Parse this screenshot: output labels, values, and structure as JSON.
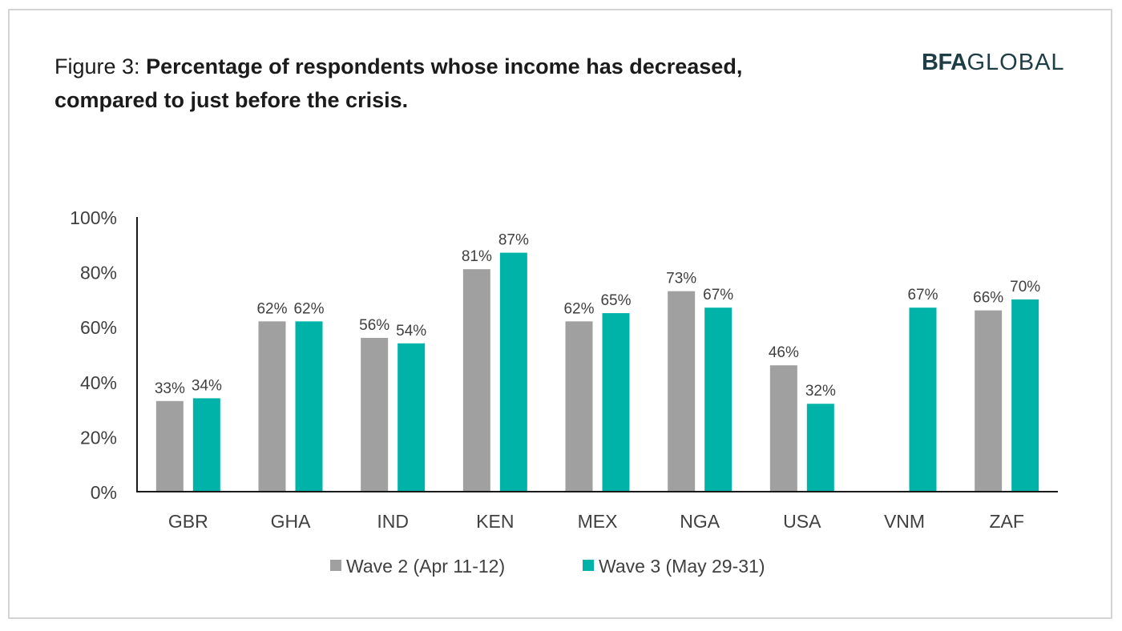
{
  "figure": {
    "prefix": "Figure 3: ",
    "title_part1": "Percentage of respondents whose ",
    "title_bold": "income has decreased,",
    "title_part2": "compared to just before the crisis."
  },
  "logo": {
    "bold": "BFA",
    "thin": "GLOBAL"
  },
  "colors": {
    "wave2": "#a0a0a0",
    "wave3": "#00b3a8",
    "axis": "#1a1a1a",
    "text": "#404040"
  },
  "chart_data": {
    "type": "bar",
    "categories": [
      "GBR",
      "GHA",
      "IND",
      "KEN",
      "MEX",
      "NGA",
      "USA",
      "VNM",
      "ZAF"
    ],
    "series": [
      {
        "name": "Wave 2 (Apr 11-12)",
        "values": [
          33,
          62,
          56,
          81,
          62,
          73,
          46,
          null,
          66
        ]
      },
      {
        "name": "Wave 3 (May 29-31)",
        "values": [
          34,
          62,
          54,
          87,
          65,
          67,
          32,
          67,
          70
        ]
      }
    ],
    "title": "Figure 3: Percentage of respondents whose income has decreased, compared to just before the crisis.",
    "xlabel": "",
    "ylabel": "",
    "ylim": [
      0,
      100
    ],
    "yticks": [
      "0%",
      "20%",
      "40%",
      "60%",
      "80%",
      "100%"
    ],
    "grid": false,
    "legend": "bottom"
  }
}
